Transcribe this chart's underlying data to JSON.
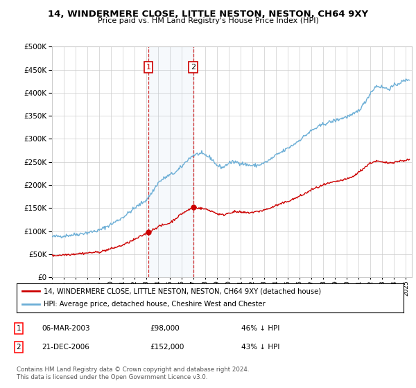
{
  "title": "14, WINDERMERE CLOSE, LITTLE NESTON, NESTON, CH64 9XY",
  "subtitle": "Price paid vs. HM Land Registry's House Price Index (HPI)",
  "legend_line1": "14, WINDERMERE CLOSE, LITTLE NESTON, NESTON, CH64 9XY (detached house)",
  "legend_line2": "HPI: Average price, detached house, Cheshire West and Chester",
  "table_rows": [
    {
      "num": "1",
      "date": "06-MAR-2003",
      "price": "£98,000",
      "pct": "46% ↓ HPI"
    },
    {
      "num": "2",
      "date": "21-DEC-2006",
      "price": "£152,000",
      "pct": "43% ↓ HPI"
    }
  ],
  "footnote1": "Contains HM Land Registry data © Crown copyright and database right 2024.",
  "footnote2": "This data is licensed under the Open Government Licence v3.0.",
  "sale1_date": 2003.18,
  "sale1_price": 98000,
  "sale2_date": 2006.97,
  "sale2_price": 152000,
  "hpi_color": "#6baed6",
  "price_color": "#cc0000",
  "background_color": "#ffffff",
  "grid_color": "#cccccc",
  "ylim": [
    0,
    500000
  ],
  "xlim_start": 1995.0,
  "xlim_end": 2025.5,
  "hpi_anchors": [
    [
      1995.0,
      88000
    ],
    [
      1996.0,
      90000
    ],
    [
      1997.0,
      93000
    ],
    [
      1998.0,
      97000
    ],
    [
      1999.0,
      102000
    ],
    [
      2000.0,
      115000
    ],
    [
      2001.0,
      130000
    ],
    [
      2002.0,
      150000
    ],
    [
      2003.0,
      168000
    ],
    [
      2003.5,
      185000
    ],
    [
      2004.0,
      205000
    ],
    [
      2004.5,
      215000
    ],
    [
      2005.0,
      222000
    ],
    [
      2005.5,
      228000
    ],
    [
      2006.0,
      240000
    ],
    [
      2006.5,
      255000
    ],
    [
      2007.0,
      265000
    ],
    [
      2007.5,
      268000
    ],
    [
      2008.0,
      265000
    ],
    [
      2008.5,
      258000
    ],
    [
      2009.0,
      242000
    ],
    [
      2009.5,
      238000
    ],
    [
      2010.0,
      248000
    ],
    [
      2010.5,
      250000
    ],
    [
      2011.0,
      248000
    ],
    [
      2011.5,
      244000
    ],
    [
      2012.0,
      242000
    ],
    [
      2012.5,
      243000
    ],
    [
      2013.0,
      248000
    ],
    [
      2013.5,
      255000
    ],
    [
      2014.0,
      265000
    ],
    [
      2014.5,
      272000
    ],
    [
      2015.0,
      280000
    ],
    [
      2015.5,
      288000
    ],
    [
      2016.0,
      298000
    ],
    [
      2016.5,
      308000
    ],
    [
      2017.0,
      318000
    ],
    [
      2017.5,
      325000
    ],
    [
      2018.0,
      332000
    ],
    [
      2018.5,
      336000
    ],
    [
      2019.0,
      340000
    ],
    [
      2019.5,
      344000
    ],
    [
      2020.0,
      348000
    ],
    [
      2020.5,
      352000
    ],
    [
      2021.0,
      362000
    ],
    [
      2021.5,
      378000
    ],
    [
      2022.0,
      400000
    ],
    [
      2022.5,
      415000
    ],
    [
      2023.0,
      412000
    ],
    [
      2023.5,
      408000
    ],
    [
      2024.0,
      415000
    ],
    [
      2024.5,
      422000
    ],
    [
      2025.3,
      430000
    ]
  ],
  "price_anchors": [
    [
      1995.0,
      47000
    ],
    [
      1996.0,
      49000
    ],
    [
      1997.0,
      51000
    ],
    [
      1998.0,
      53000
    ],
    [
      1999.0,
      55000
    ],
    [
      2000.0,
      62000
    ],
    [
      2001.0,
      70000
    ],
    [
      2002.0,
      82000
    ],
    [
      2003.18,
      98000
    ],
    [
      2004.0,
      110000
    ],
    [
      2005.0,
      118000
    ],
    [
      2006.0,
      138000
    ],
    [
      2006.97,
      152000
    ],
    [
      2007.5,
      150000
    ],
    [
      2008.0,
      148000
    ],
    [
      2008.5,
      144000
    ],
    [
      2009.0,
      138000
    ],
    [
      2009.5,
      135000
    ],
    [
      2010.0,
      140000
    ],
    [
      2010.5,
      142000
    ],
    [
      2011.0,
      141000
    ],
    [
      2011.5,
      140000
    ],
    [
      2012.0,
      141000
    ],
    [
      2012.5,
      143000
    ],
    [
      2013.0,
      146000
    ],
    [
      2013.5,
      150000
    ],
    [
      2014.0,
      156000
    ],
    [
      2014.5,
      160000
    ],
    [
      2015.0,
      165000
    ],
    [
      2015.5,
      170000
    ],
    [
      2016.0,
      176000
    ],
    [
      2016.5,
      182000
    ],
    [
      2017.0,
      190000
    ],
    [
      2017.5,
      195000
    ],
    [
      2018.0,
      200000
    ],
    [
      2018.5,
      204000
    ],
    [
      2019.0,
      207000
    ],
    [
      2019.5,
      210000
    ],
    [
      2020.0,
      213000
    ],
    [
      2020.5,
      218000
    ],
    [
      2021.0,
      228000
    ],
    [
      2021.5,
      238000
    ],
    [
      2022.0,
      248000
    ],
    [
      2022.5,
      252000
    ],
    [
      2023.0,
      249000
    ],
    [
      2023.5,
      248000
    ],
    [
      2024.0,
      250000
    ],
    [
      2024.5,
      252000
    ],
    [
      2025.3,
      255000
    ]
  ]
}
